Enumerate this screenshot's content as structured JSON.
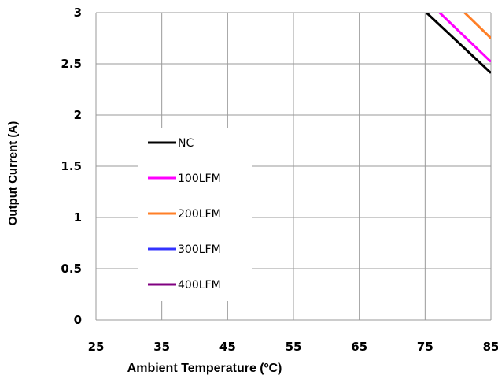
{
  "chart_data": {
    "type": "line",
    "title": "",
    "xlabel": "Ambient Temperature (ºC)",
    "ylabel": "Output Current (A)",
    "xlim": [
      25,
      85
    ],
    "ylim": [
      0,
      3
    ],
    "xticks": [
      "25",
      "35",
      "45",
      "55",
      "65",
      "75",
      "85"
    ],
    "yticks": [
      "0",
      "0.5",
      "1",
      "1.5",
      "2",
      "2.5",
      "3"
    ],
    "grid": true,
    "legend_position": "left",
    "series": [
      {
        "name": "NC",
        "color": "#000000",
        "points": [
          [
            75.2,
            3.0
          ],
          [
            85,
            2.41
          ]
        ]
      },
      {
        "name": "100LFM",
        "color": "#ff00ff",
        "points": [
          [
            77.2,
            3.0
          ],
          [
            85,
            2.52
          ]
        ]
      },
      {
        "name": "200LFM",
        "color": "#ff7f27",
        "points": [
          [
            81,
            3.0
          ],
          [
            85,
            2.75
          ]
        ]
      },
      {
        "name": "300LFM",
        "color": "#3333ff",
        "points": []
      },
      {
        "name": "400LFM",
        "color": "#800080",
        "points": []
      }
    ]
  }
}
